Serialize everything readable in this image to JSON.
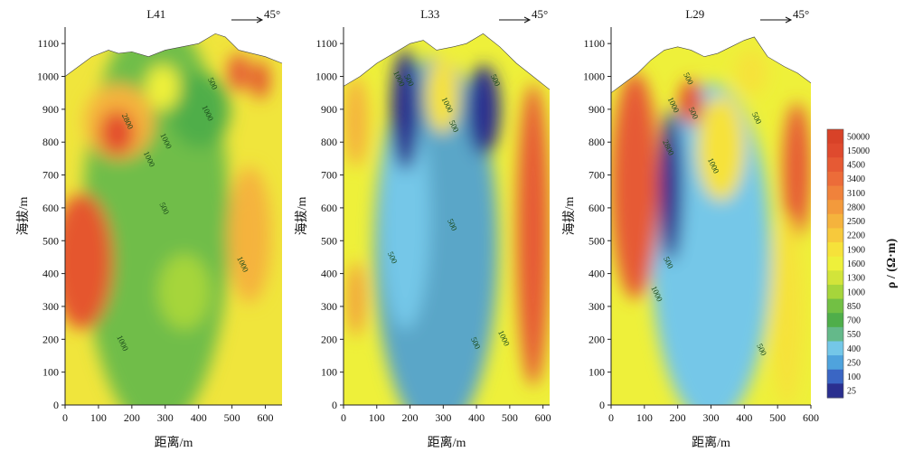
{
  "chart_data": {
    "type": "heatmap",
    "subtype": "resistivity-section-contour",
    "panels": [
      {
        "title": "L41",
        "direction_label": "45°",
        "xlabel": "距离/m",
        "ylabel": "海拔/m",
        "xlim": [
          0,
          650
        ],
        "ylim": [
          0,
          1150
        ],
        "x_ticks": [
          0,
          100,
          200,
          300,
          400,
          500,
          600
        ],
        "y_ticks": [
          0,
          100,
          200,
          300,
          400,
          500,
          600,
          700,
          800,
          900,
          1000,
          1100
        ],
        "surface": [
          [
            0,
            1000
          ],
          [
            40,
            1030
          ],
          [
            80,
            1060
          ],
          [
            130,
            1080
          ],
          [
            160,
            1070
          ],
          [
            200,
            1075
          ],
          [
            250,
            1060
          ],
          [
            300,
            1080
          ],
          [
            350,
            1090
          ],
          [
            400,
            1100
          ],
          [
            450,
            1130
          ],
          [
            480,
            1120
          ],
          [
            520,
            1080
          ],
          [
            560,
            1070
          ],
          [
            600,
            1060
          ],
          [
            650,
            1040
          ]
        ],
        "contour_labels": [
          {
            "text": "2800",
            "x": 180,
            "y": 860
          },
          {
            "text": "1000",
            "x": 295,
            "y": 800
          },
          {
            "text": "1000",
            "x": 245,
            "y": 745
          },
          {
            "text": "500",
            "x": 435,
            "y": 975
          },
          {
            "text": "1000",
            "x": 420,
            "y": 885
          },
          {
            "text": "500",
            "x": 290,
            "y": 595
          },
          {
            "text": "1000",
            "x": 525,
            "y": 425
          },
          {
            "text": "1000",
            "x": 165,
            "y": 185
          }
        ]
      },
      {
        "title": "L33",
        "direction_label": "45°",
        "xlabel": "距离/m",
        "ylabel": "海拔/m",
        "xlim": [
          0,
          620
        ],
        "ylim": [
          0,
          1150
        ],
        "x_ticks": [
          0,
          100,
          200,
          300,
          400,
          500,
          600
        ],
        "y_ticks": [
          0,
          100,
          200,
          300,
          400,
          500,
          600,
          700,
          800,
          900,
          1000,
          1100
        ],
        "surface": [
          [
            0,
            970
          ],
          [
            50,
            1000
          ],
          [
            100,
            1040
          ],
          [
            150,
            1070
          ],
          [
            200,
            1100
          ],
          [
            240,
            1110
          ],
          [
            280,
            1080
          ],
          [
            330,
            1090
          ],
          [
            370,
            1100
          ],
          [
            420,
            1130
          ],
          [
            470,
            1090
          ],
          [
            520,
            1040
          ],
          [
            570,
            1000
          ],
          [
            620,
            960
          ]
        ],
        "contour_labels": [
          {
            "text": "1000",
            "x": 160,
            "y": 990
          },
          {
            "text": "500",
            "x": 190,
            "y": 985
          },
          {
            "text": "500",
            "x": 450,
            "y": 985
          },
          {
            "text": "1000",
            "x": 305,
            "y": 910
          },
          {
            "text": "500",
            "x": 325,
            "y": 845
          },
          {
            "text": "500",
            "x": 320,
            "y": 545
          },
          {
            "text": "500",
            "x": 140,
            "y": 445
          },
          {
            "text": "1000",
            "x": 475,
            "y": 200
          },
          {
            "text": "500",
            "x": 390,
            "y": 185
          }
        ]
      },
      {
        "title": "L29",
        "direction_label": "45°",
        "xlabel": "距离/m",
        "ylabel": "海拔/m",
        "xlim": [
          0,
          600
        ],
        "ylim": [
          0,
          1150
        ],
        "x_ticks": [
          0,
          100,
          200,
          300,
          400,
          500,
          600
        ],
        "y_ticks": [
          0,
          100,
          200,
          300,
          400,
          500,
          600,
          700,
          800,
          900,
          1000,
          1100
        ],
        "surface": [
          [
            0,
            950
          ],
          [
            40,
            980
          ],
          [
            80,
            1010
          ],
          [
            120,
            1050
          ],
          [
            160,
            1080
          ],
          [
            200,
            1090
          ],
          [
            240,
            1080
          ],
          [
            280,
            1060
          ],
          [
            320,
            1070
          ],
          [
            360,
            1090
          ],
          [
            400,
            1110
          ],
          [
            430,
            1120
          ],
          [
            470,
            1060
          ],
          [
            520,
            1030
          ],
          [
            560,
            1010
          ],
          [
            600,
            980
          ]
        ],
        "contour_labels": [
          {
            "text": "500",
            "x": 225,
            "y": 990
          },
          {
            "text": "1000",
            "x": 180,
            "y": 910
          },
          {
            "text": "500",
            "x": 240,
            "y": 885
          },
          {
            "text": "500",
            "x": 430,
            "y": 870
          },
          {
            "text": "2800",
            "x": 165,
            "y": 780
          },
          {
            "text": "1000",
            "x": 300,
            "y": 725
          },
          {
            "text": "500",
            "x": 165,
            "y": 430
          },
          {
            "text": "1000",
            "x": 130,
            "y": 335
          },
          {
            "text": "500",
            "x": 445,
            "y": 165
          }
        ]
      }
    ],
    "legend": {
      "title": "ρ / (Ω·m)",
      "levels": [
        "25",
        "100",
        "250",
        "400",
        "550",
        "700",
        "850",
        "1000",
        "1300",
        "1600",
        "1900",
        "2200",
        "2500",
        "2800",
        "3100",
        "3400",
        "4500",
        "15000",
        "50000"
      ],
      "colors": [
        "#2a2f8f",
        "#3a66c4",
        "#4fa3dd",
        "#74c7e8",
        "#64b98a",
        "#4fae4a",
        "#72c044",
        "#a6d53b",
        "#d2e43a",
        "#eef03a",
        "#f6e23a",
        "#f7c93c",
        "#f5b33d",
        "#f39a3c",
        "#f0823b",
        "#ec6c39",
        "#e65a34",
        "#df4a2e",
        "#d84228"
      ]
    }
  }
}
